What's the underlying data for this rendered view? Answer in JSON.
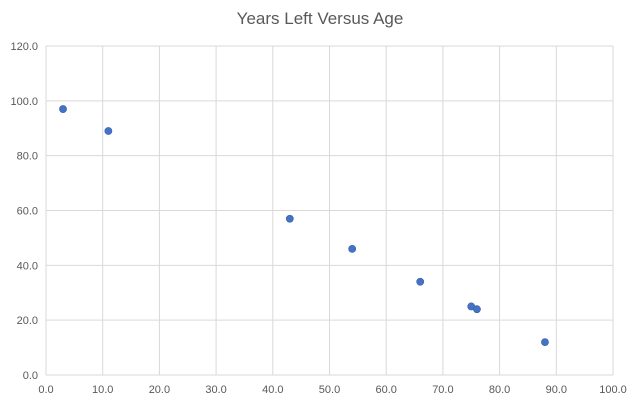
{
  "chart_data": {
    "type": "scatter",
    "title": "Years Left Versus Age",
    "xlabel": "",
    "ylabel": "",
    "xlim": [
      0,
      100
    ],
    "ylim": [
      0,
      120
    ],
    "x_ticks": [
      "0.0",
      "10.0",
      "20.0",
      "30.0",
      "40.0",
      "50.0",
      "60.0",
      "70.0",
      "80.0",
      "90.0",
      "100.0"
    ],
    "y_ticks": [
      "0.0",
      "20.0",
      "40.0",
      "60.0",
      "80.0",
      "100.0",
      "120.0"
    ],
    "grid": true,
    "legend": "none",
    "marker_color": "#4472c4",
    "series": [
      {
        "x": [
          3,
          11,
          43,
          54,
          66,
          75,
          76,
          88
        ],
        "y": [
          97,
          89,
          57,
          46,
          34,
          25,
          24,
          12
        ]
      }
    ]
  }
}
